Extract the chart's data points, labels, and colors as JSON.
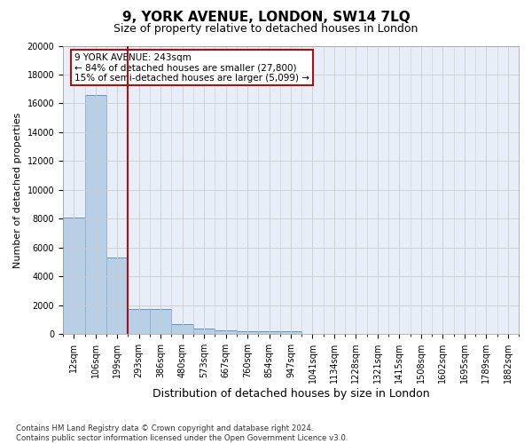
{
  "title": "9, YORK AVENUE, LONDON, SW14 7LQ",
  "subtitle": "Size of property relative to detached houses in London",
  "xlabel": "Distribution of detached houses by size in London",
  "ylabel": "Number of detached properties",
  "categories": [
    "12sqm",
    "106sqm",
    "199sqm",
    "293sqm",
    "386sqm",
    "480sqm",
    "573sqm",
    "667sqm",
    "760sqm",
    "854sqm",
    "947sqm",
    "1041sqm",
    "1134sqm",
    "1228sqm",
    "1321sqm",
    "1415sqm",
    "1508sqm",
    "1602sqm",
    "1695sqm",
    "1789sqm",
    "1882sqm"
  ],
  "values": [
    8100,
    16600,
    5300,
    1750,
    1750,
    680,
    380,
    280,
    220,
    200,
    170,
    0,
    0,
    0,
    0,
    0,
    0,
    0,
    0,
    0,
    0
  ],
  "bar_color": "#b8cfe8",
  "bar_edge_color": "#5588bb",
  "vline_x": 2.5,
  "vline_color": "#aa1111",
  "annotation_text": "9 YORK AVENUE: 243sqm\n← 84% of detached houses are smaller (27,800)\n15% of semi-detached houses are larger (5,099) →",
  "annotation_box_color": "#ffffff",
  "annotation_box_edge": "#aa1111",
  "ylim": [
    0,
    20000
  ],
  "yticks": [
    0,
    2000,
    4000,
    6000,
    8000,
    10000,
    12000,
    14000,
    16000,
    18000,
    20000
  ],
  "grid_color": "#cccccc",
  "bg_color": "#e8eef8",
  "title_fontsize": 11,
  "subtitle_fontsize": 9,
  "ylabel_fontsize": 8,
  "xlabel_fontsize": 9,
  "tick_fontsize": 7,
  "footnote": "Contains HM Land Registry data © Crown copyright and database right 2024.\nContains public sector information licensed under the Open Government Licence v3.0."
}
